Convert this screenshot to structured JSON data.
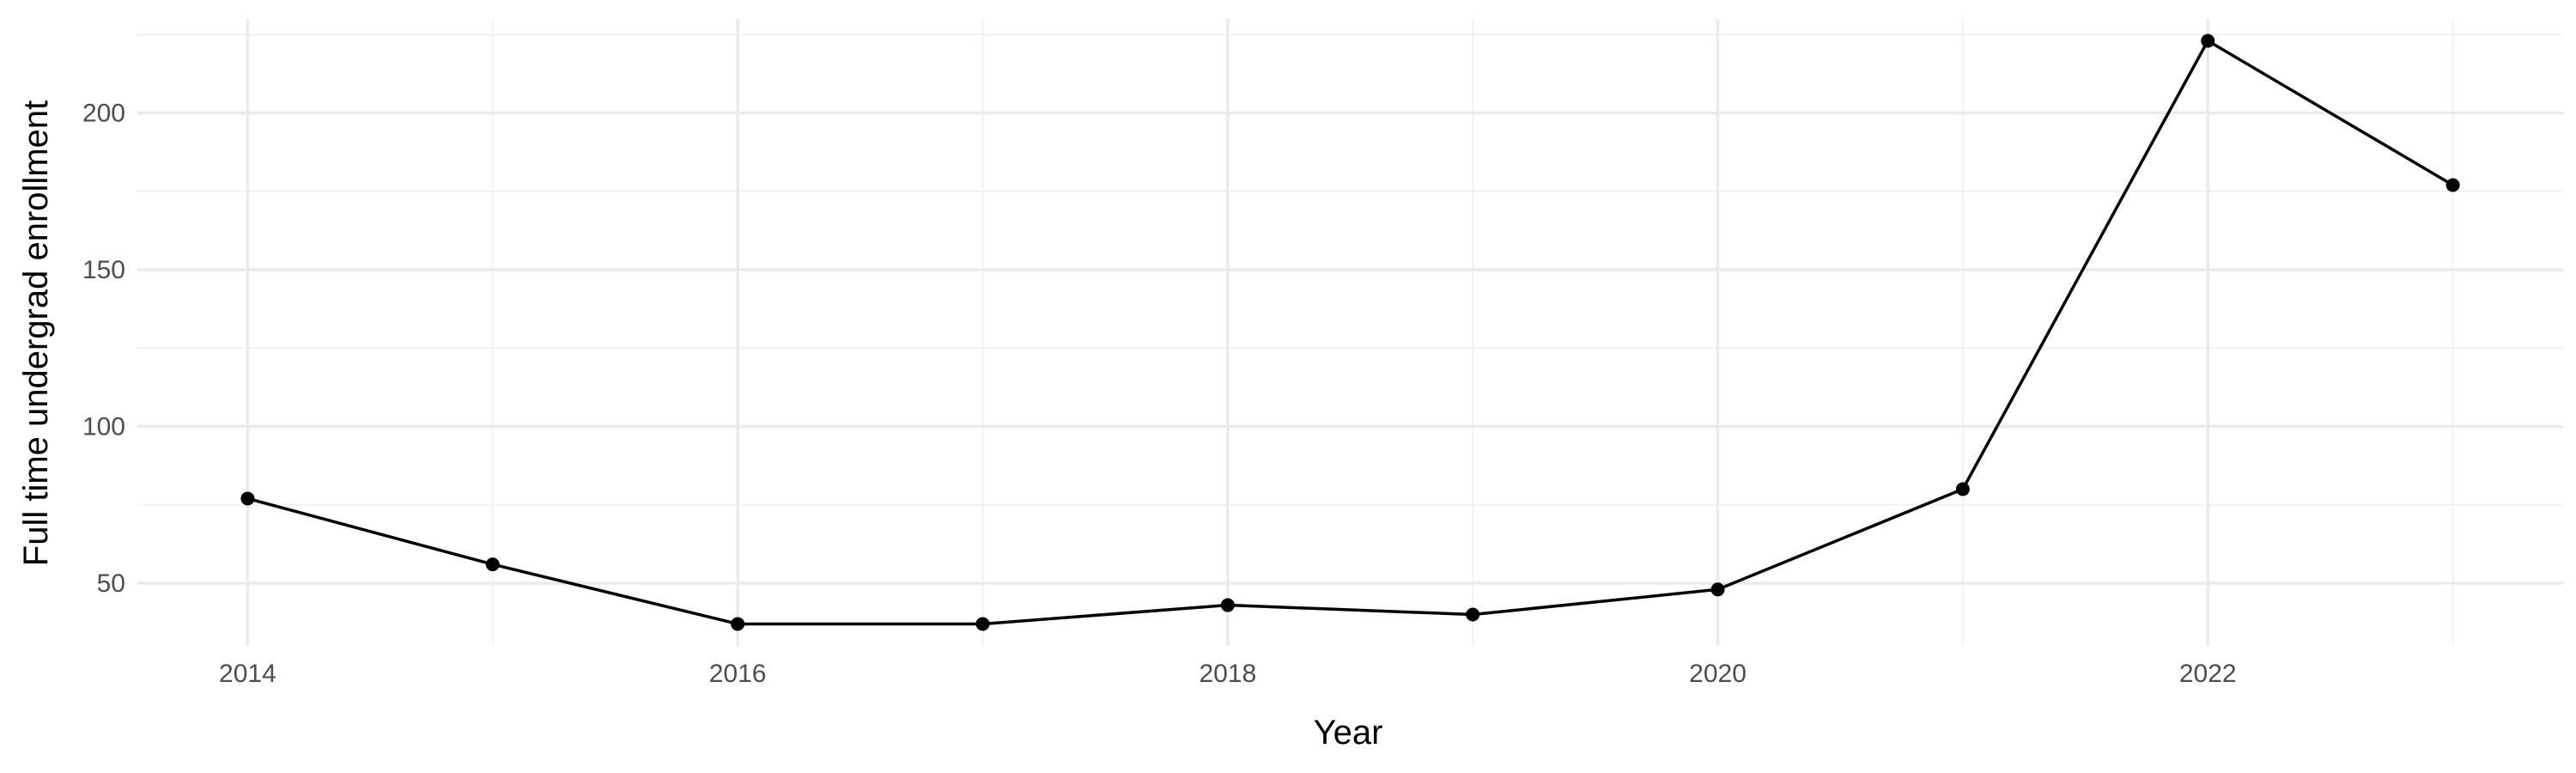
{
  "chart_data": {
    "type": "line",
    "title": "",
    "xlabel": "Year",
    "ylabel": "Full time undergrad enrollment",
    "x": [
      2014,
      2015,
      2016,
      2017,
      2018,
      2019,
      2020,
      2021,
      2022,
      2023
    ],
    "series": [
      {
        "values": [
          77,
          56,
          37,
          37,
          43,
          40,
          48,
          80,
          223,
          177
        ]
      }
    ],
    "xlim": [
      2013.55,
      2023.45
    ],
    "ylim": [
      30,
      230
    ],
    "x_ticks": [
      2014,
      2016,
      2018,
      2020,
      2022
    ],
    "y_ticks": [
      50,
      100,
      150,
      200
    ],
    "grid": true,
    "colors": {
      "line": "#000000",
      "point": "#000000",
      "grid_major": "#ebebeb",
      "grid_minor": "#f2f2f2",
      "tick_text": "#4d4d4d"
    }
  }
}
